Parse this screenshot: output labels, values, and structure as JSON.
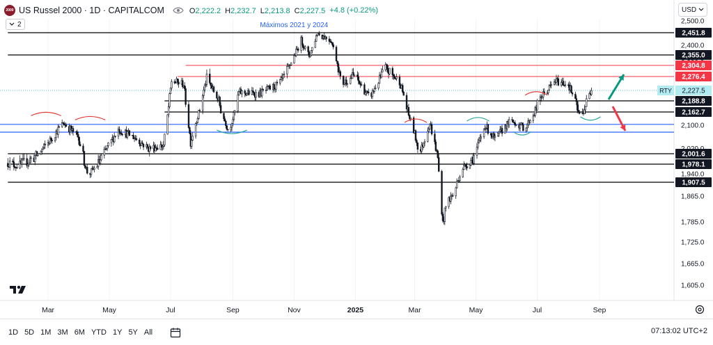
{
  "legend": {
    "logo_text": "2000",
    "title": "US Russel 2000 · 1D · CAPITALCOM",
    "ohlc": [
      {
        "k": "O",
        "v": "2,222.2"
      },
      {
        "k": "H",
        "v": "2,232.7"
      },
      {
        "k": "L",
        "v": "2,213.8"
      },
      {
        "k": "C",
        "v": "2,227.5"
      }
    ],
    "change": "+4.8 (+0.22%)",
    "up_color": "#089981"
  },
  "indicator_count": "2",
  "currency": "USD",
  "timeframes": [
    "1D",
    "5D",
    "1M",
    "3M",
    "6M",
    "YTD",
    "1Y",
    "5Y",
    "All"
  ],
  "clock": "07:13:02 UTC+2",
  "chart_data": {
    "type": "candlestick",
    "title": "US Russel 2000 · 1D · CAPITALCOM",
    "annotation": "Máximos 2021 y 2024",
    "ylim": [
      1580,
      2510
    ],
    "y_ticks": [
      2500.0,
      2400.0,
      2320.0,
      2100.0,
      2020.0,
      1940.0,
      1865.0,
      1785.0,
      1725.0,
      1665.0,
      1605.0
    ],
    "x_ticks": [
      {
        "label": "Mar",
        "day": 0
      },
      {
        "label": "May",
        "day": 61
      },
      {
        "label": "Jul",
        "day": 122
      },
      {
        "label": "Sep",
        "day": 184
      },
      {
        "label": "Nov",
        "day": 245
      },
      {
        "label": "2025",
        "day": 306
      },
      {
        "label": "Mar",
        "day": 365
      },
      {
        "label": "May",
        "day": 426
      },
      {
        "label": "Jul",
        "day": 487
      },
      {
        "label": "Sep",
        "day": 549
      }
    ],
    "last_day": 541,
    "horizontal_levels": [
      {
        "label": "2,451.8",
        "value": 2451.8,
        "color": "#000000",
        "start_day": -40
      },
      {
        "label": "2,355.0",
        "value": 2355.0,
        "color": "#000000",
        "start_day": -40
      },
      {
        "label": "2,304.8",
        "value": 2304.8,
        "color": "#f23645",
        "start_day": 137
      },
      {
        "label": "2,276.4",
        "value": 2276.4,
        "color": "#f23645",
        "start_day": 129
      },
      {
        "label": "2,188.8",
        "value": 2188.8,
        "color": "#000000",
        "start_day": 116
      },
      {
        "label": "2,162.7",
        "value": 2162.7,
        "color": "#000000",
        "start_day": 116
      },
      {
        "label": "2,001.6",
        "value": 2001.6,
        "color": "#000000",
        "start_day": -40
      },
      {
        "label": "1,978.1",
        "value": 1978.1,
        "color": "#000000",
        "start_day": -40
      },
      {
        "label": "1,907.5",
        "value": 1907.5,
        "color": "#000000",
        "start_day": -40
      }
    ],
    "blue_levels": [
      2104.0,
      2076.0
    ],
    "current_price": {
      "label": "2,227.5",
      "value": 2227.5,
      "symbol": "RTY"
    },
    "anchors": [
      {
        "day": -40,
        "price": 1980
      },
      {
        "day": -30,
        "price": 1970
      },
      {
        "day": -10,
        "price": 2000
      },
      {
        "day": 5,
        "price": 2060
      },
      {
        "day": 15,
        "price": 2110
      },
      {
        "day": 30,
        "price": 2060
      },
      {
        "day": 40,
        "price": 1935
      },
      {
        "day": 55,
        "price": 2000
      },
      {
        "day": 70,
        "price": 2085
      },
      {
        "day": 85,
        "price": 2060
      },
      {
        "day": 100,
        "price": 2020
      },
      {
        "day": 115,
        "price": 2030
      },
      {
        "day": 123,
        "price": 2260
      },
      {
        "day": 135,
        "price": 2250
      },
      {
        "day": 142,
        "price": 2040
      },
      {
        "day": 158,
        "price": 2270
      },
      {
        "day": 170,
        "price": 2190
      },
      {
        "day": 180,
        "price": 2075
      },
      {
        "day": 190,
        "price": 2220
      },
      {
        "day": 210,
        "price": 2215
      },
      {
        "day": 230,
        "price": 2250
      },
      {
        "day": 240,
        "price": 2300
      },
      {
        "day": 252,
        "price": 2420
      },
      {
        "day": 260,
        "price": 2350
      },
      {
        "day": 268,
        "price": 2450
      },
      {
        "day": 282,
        "price": 2420
      },
      {
        "day": 292,
        "price": 2250
      },
      {
        "day": 305,
        "price": 2280
      },
      {
        "day": 320,
        "price": 2200
      },
      {
        "day": 335,
        "price": 2300
      },
      {
        "day": 350,
        "price": 2260
      },
      {
        "day": 362,
        "price": 2110
      },
      {
        "day": 370,
        "price": 2000
      },
      {
        "day": 380,
        "price": 2110
      },
      {
        "day": 388,
        "price": 1990
      },
      {
        "day": 393,
        "price": 1780
      },
      {
        "day": 397,
        "price": 1850
      },
      {
        "day": 404,
        "price": 1870
      },
      {
        "day": 412,
        "price": 1960
      },
      {
        "day": 425,
        "price": 2000
      },
      {
        "day": 435,
        "price": 2100
      },
      {
        "day": 445,
        "price": 2050
      },
      {
        "day": 460,
        "price": 2120
      },
      {
        "day": 475,
        "price": 2090
      },
      {
        "day": 490,
        "price": 2200
      },
      {
        "day": 505,
        "price": 2260
      },
      {
        "day": 518,
        "price": 2250
      },
      {
        "day": 530,
        "price": 2140
      },
      {
        "day": 541,
        "price": 2227.5
      }
    ]
  }
}
